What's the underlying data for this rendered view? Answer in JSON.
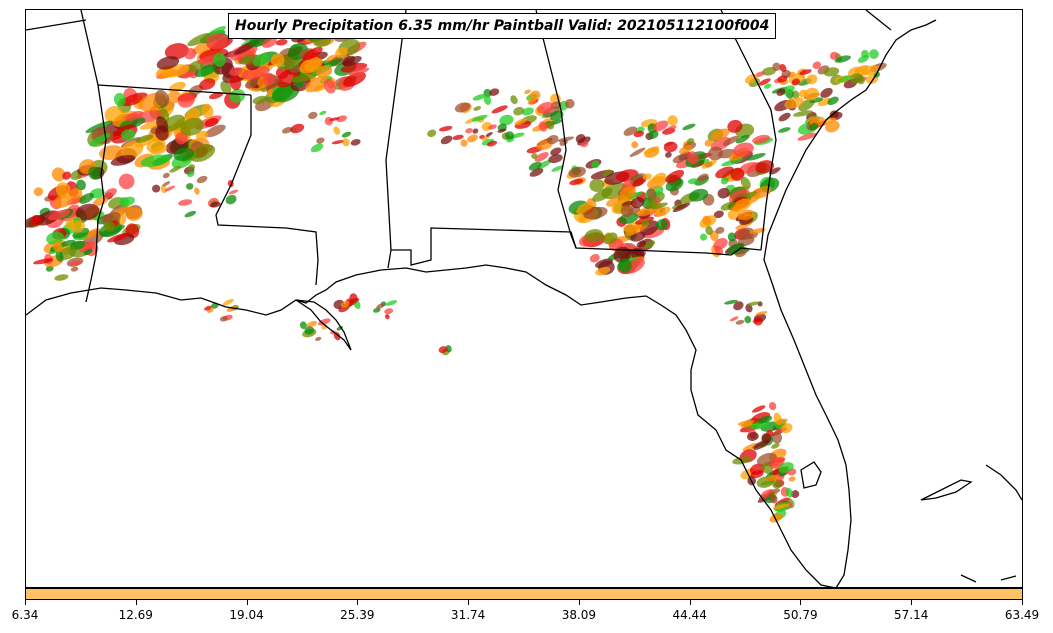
{
  "title": "Hourly Precipitation 6.35 mm/hr Paintball Valid: 202105112100f004",
  "colors": {
    "colorbar": "#ffc266",
    "paint": [
      "#ff8800",
      "#ffa000",
      "#e00000",
      "#ff4040",
      "#0a8a0a",
      "#22cc22",
      "#7a1010",
      "#6b8e00",
      "#a0522d"
    ],
    "boundary": "#000000"
  },
  "colorbar": {
    "ticks": [
      "6.34",
      "12.69",
      "19.04",
      "25.39",
      "31.74",
      "38.09",
      "44.44",
      "50.79",
      "57.14",
      "63.49"
    ]
  }
}
